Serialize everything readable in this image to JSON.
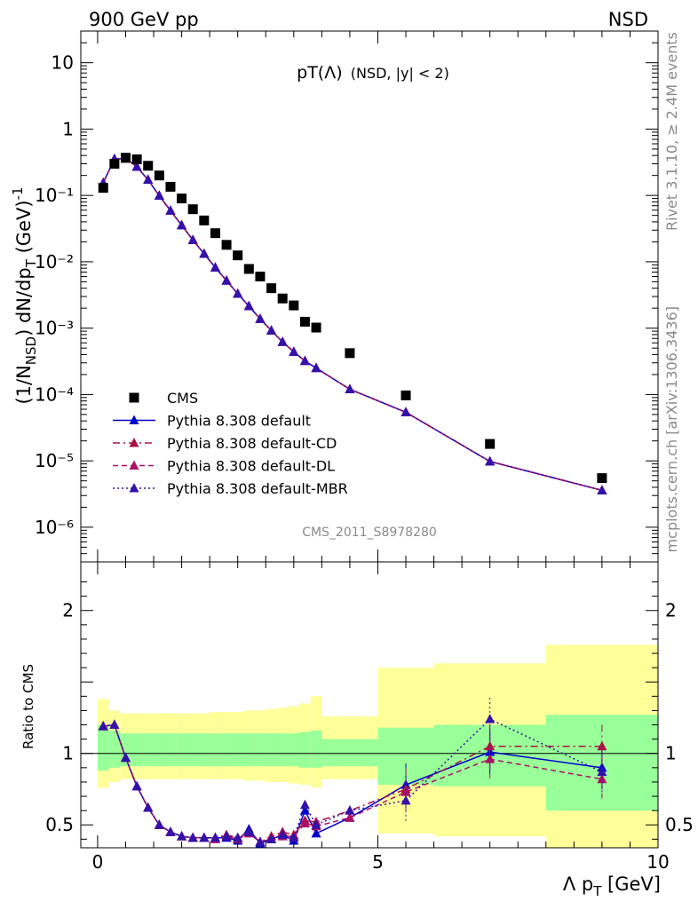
{
  "header": {
    "left": "900 GeV pp",
    "right": "NSD"
  },
  "side_text": {
    "rivet": "Rivet 3.1.10, ≥ 2.4M events",
    "mcplots": "mcplots.cern.ch [arXiv:1306.3436]"
  },
  "watermark": "CMS_2011_S8978280",
  "colors": {
    "cms": "#000000",
    "default": "#0000cc",
    "cd": "#aa1144",
    "dl": "#aa1166",
    "mbr": "#3311aa",
    "band_inner": "#99ff99",
    "band_outer": "#ffff99"
  },
  "chart_data": [
    {
      "type": "scatter",
      "title": "pT(Λ) (NSD, |y| < 2)",
      "title_main": "pT(Λ)",
      "title_suffix": "(NSD, |y| < 2)",
      "ylabel": "(1/N_NSD) dN/dp_T (GeV)^-1",
      "ylabel_parts": {
        "p1": "(1/N",
        "sub1": "NSD",
        "p2": ") dN/dp",
        "sub2": "T",
        "p3": " (GeV)",
        "sup": "-1"
      },
      "xlim": [
        -0.3,
        10
      ],
      "ylim": [
        3e-07,
        30
      ],
      "yscale": "log",
      "yticks": [
        {
          "value": 10,
          "label": "10"
        },
        {
          "value": 1,
          "label": "1"
        },
        {
          "value": 0.1,
          "label": "10⁻¹"
        },
        {
          "value": 0.01,
          "label": "10⁻²"
        },
        {
          "value": 0.001,
          "label": "10⁻³"
        },
        {
          "value": 0.0001,
          "label": "10⁻⁴"
        },
        {
          "value": 1e-05,
          "label": "10⁻⁵"
        },
        {
          "value": 1e-06,
          "label": "10⁻⁶"
        }
      ],
      "legend_placement": "bottom-left",
      "legend": [
        "CMS",
        "Pythia 8.308 default",
        "Pythia 8.308 default-CD",
        "Pythia 8.308 default-DL",
        "Pythia 8.308 default-MBR"
      ],
      "series": [
        {
          "name": "CMS",
          "x": [
            0.1,
            0.3,
            0.5,
            0.7,
            0.9,
            1.1,
            1.3,
            1.5,
            1.7,
            1.9,
            2.1,
            2.3,
            2.5,
            2.7,
            2.9,
            3.1,
            3.3,
            3.5,
            3.7,
            3.9,
            4.5,
            5.5,
            7.0,
            9.0
          ],
          "y": [
            0.13,
            0.3,
            0.37,
            0.35,
            0.28,
            0.2,
            0.135,
            0.09,
            0.062,
            0.042,
            0.027,
            0.018,
            0.0125,
            0.0078,
            0.006,
            0.004,
            0.0028,
            0.0022,
            0.00125,
            0.00102,
            0.00042,
            9.7e-05,
            1.8e-05,
            5.5e-06
          ]
        },
        {
          "name": "Pythia 8.308 default",
          "x": [
            0.1,
            0.3,
            0.5,
            0.7,
            0.9,
            1.1,
            1.3,
            1.5,
            1.7,
            1.9,
            2.1,
            2.3,
            2.5,
            2.7,
            2.9,
            3.1,
            3.3,
            3.5,
            3.7,
            3.9,
            4.5,
            5.5,
            7.0,
            9.0
          ],
          "y": [
            0.155,
            0.355,
            0.36,
            0.27,
            0.172,
            0.099,
            0.059,
            0.0355,
            0.0213,
            0.0132,
            0.0082,
            0.0052,
            0.0033,
            0.00215,
            0.00138,
            0.00092,
            0.00062,
            0.00044,
            0.00032,
            0.00025,
            0.00012,
            5.4e-05,
            9.8e-06,
            3.6e-06
          ]
        },
        {
          "name": "Pythia 8.308 default-CD",
          "x": [
            0.1,
            0.3,
            0.5,
            0.7,
            0.9,
            1.1,
            1.3,
            1.5,
            1.7,
            1.9,
            2.1,
            2.3,
            2.5,
            2.7,
            2.9,
            3.1,
            3.3,
            3.5,
            3.7,
            3.9,
            4.5,
            5.5,
            7.0,
            9.0
          ],
          "y": [
            0.155,
            0.355,
            0.36,
            0.27,
            0.172,
            0.099,
            0.059,
            0.0355,
            0.0213,
            0.0132,
            0.0082,
            0.0052,
            0.0033,
            0.00215,
            0.00138,
            0.00092,
            0.00062,
            0.00044,
            0.00032,
            0.00025,
            0.00012,
            5.4e-05,
            9.8e-06,
            3.6e-06
          ]
        },
        {
          "name": "Pythia 8.308 default-DL",
          "x": [
            0.1,
            0.3,
            0.5,
            0.7,
            0.9,
            1.1,
            1.3,
            1.5,
            1.7,
            1.9,
            2.1,
            2.3,
            2.5,
            2.7,
            2.9,
            3.1,
            3.3,
            3.5,
            3.7,
            3.9,
            4.5,
            5.5,
            7.0,
            9.0
          ],
          "y": [
            0.155,
            0.355,
            0.36,
            0.27,
            0.172,
            0.099,
            0.059,
            0.0355,
            0.0213,
            0.0132,
            0.0082,
            0.0052,
            0.0033,
            0.00215,
            0.00138,
            0.00092,
            0.00062,
            0.00044,
            0.00032,
            0.00025,
            0.00012,
            5.4e-05,
            9.8e-06,
            3.6e-06
          ]
        },
        {
          "name": "Pythia 8.308 default-MBR",
          "x": [
            0.1,
            0.3,
            0.5,
            0.7,
            0.9,
            1.1,
            1.3,
            1.5,
            1.7,
            1.9,
            2.1,
            2.3,
            2.5,
            2.7,
            2.9,
            3.1,
            3.3,
            3.5,
            3.7,
            3.9,
            4.5,
            5.5,
            7.0,
            9.0
          ],
          "y": [
            0.155,
            0.355,
            0.36,
            0.27,
            0.172,
            0.099,
            0.059,
            0.0355,
            0.0213,
            0.0132,
            0.0082,
            0.0052,
            0.0033,
            0.00215,
            0.00138,
            0.00092,
            0.00062,
            0.00044,
            0.00032,
            0.00025,
            0.00012,
            5.4e-05,
            9.8e-06,
            3.6e-06
          ]
        }
      ]
    },
    {
      "type": "line",
      "ylabel": "Ratio to CMS",
      "xlabel": "Λ p_T [GeV]",
      "xlabel_parts": {
        "main": "Λ p",
        "sub": "T",
        "tail": " [GeV]"
      },
      "xlim": [
        -0.3,
        10
      ],
      "ylim": [
        0.34,
        2.34
      ],
      "xticks": [
        {
          "value": 0,
          "label": "0"
        },
        {
          "value": 5,
          "label": "5"
        },
        {
          "value": 10,
          "label": "10"
        }
      ],
      "yticks": [
        {
          "value": 0.5,
          "label": "0.5"
        },
        {
          "value": 1,
          "label": "1"
        },
        {
          "value": 2,
          "label": "2"
        }
      ],
      "bands": {
        "edges": [
          0,
          0.2,
          0.4,
          0.6,
          0.8,
          1.0,
          1.2,
          1.4,
          1.6,
          1.8,
          2.0,
          2.2,
          2.4,
          2.6,
          2.8,
          3.0,
          3.2,
          3.4,
          3.6,
          3.8,
          4.0,
          5.0,
          6.0,
          8.0,
          10.0
        ],
        "inner": [
          [
            0.88,
            1.2
          ],
          [
            0.9,
            1.16
          ],
          [
            0.91,
            1.14
          ],
          [
            0.91,
            1.14
          ],
          [
            0.91,
            1.14
          ],
          [
            0.91,
            1.14
          ],
          [
            0.91,
            1.14
          ],
          [
            0.91,
            1.14
          ],
          [
            0.91,
            1.14
          ],
          [
            0.91,
            1.14
          ],
          [
            0.91,
            1.14
          ],
          [
            0.91,
            1.14
          ],
          [
            0.91,
            1.14
          ],
          [
            0.91,
            1.14
          ],
          [
            0.91,
            1.14
          ],
          [
            0.91,
            1.14
          ],
          [
            0.91,
            1.14
          ],
          [
            0.91,
            1.14
          ],
          [
            0.9,
            1.15
          ],
          [
            0.9,
            1.16
          ],
          [
            0.91,
            1.1
          ],
          [
            0.78,
            1.18
          ],
          [
            0.77,
            1.2
          ],
          [
            0.6,
            1.27
          ],
          [
            0.58,
            1.53
          ]
        ],
        "outer": [
          [
            0.76,
            1.38
          ],
          [
            0.8,
            1.3
          ],
          [
            0.82,
            1.28
          ],
          [
            0.82,
            1.28
          ],
          [
            0.82,
            1.28
          ],
          [
            0.82,
            1.28
          ],
          [
            0.82,
            1.28
          ],
          [
            0.82,
            1.28
          ],
          [
            0.82,
            1.28
          ],
          [
            0.82,
            1.28
          ],
          [
            0.82,
            1.29
          ],
          [
            0.82,
            1.29
          ],
          [
            0.82,
            1.29
          ],
          [
            0.81,
            1.3
          ],
          [
            0.81,
            1.3
          ],
          [
            0.8,
            1.31
          ],
          [
            0.8,
            1.32
          ],
          [
            0.79,
            1.33
          ],
          [
            0.78,
            1.35
          ],
          [
            0.76,
            1.4
          ],
          [
            0.82,
            1.26
          ],
          [
            0.44,
            1.6
          ],
          [
            0.42,
            1.63
          ],
          [
            0.3,
            1.76
          ],
          [
            0.33,
            1.93
          ]
        ]
      },
      "series": [
        {
          "name": "Pythia 8.308 default",
          "x": [
            0.1,
            0.3,
            0.5,
            0.7,
            0.9,
            1.1,
            1.3,
            1.5,
            1.7,
            1.9,
            2.1,
            2.3,
            2.5,
            2.7,
            2.9,
            3.1,
            3.3,
            3.5,
            3.7,
            3.9,
            4.5,
            5.5,
            7.0,
            9.0
          ],
          "y": [
            1.19,
            1.2,
            0.97,
            0.77,
            0.62,
            0.5,
            0.45,
            0.42,
            0.41,
            0.41,
            0.41,
            0.41,
            0.39,
            0.47,
            0.37,
            0.4,
            0.43,
            0.39,
            0.6,
            0.44,
            0.55,
            0.78,
            1.01,
            0.9
          ]
        },
        {
          "name": "Pythia 8.308 default-CD",
          "x": [
            0.1,
            0.3,
            0.5,
            0.7,
            0.9,
            1.1,
            1.3,
            1.5,
            1.7,
            1.9,
            2.1,
            2.3,
            2.5,
            2.7,
            2.9,
            3.1,
            3.3,
            3.5,
            3.7,
            3.9,
            4.5,
            5.5,
            7.0,
            9.0
          ],
          "y": [
            1.19,
            1.2,
            0.97,
            0.77,
            0.62,
            0.5,
            0.45,
            0.42,
            0.41,
            0.41,
            0.41,
            0.43,
            0.41,
            0.45,
            0.38,
            0.42,
            0.45,
            0.43,
            0.53,
            0.52,
            0.6,
            0.75,
            1.05,
            1.05
          ]
        },
        {
          "name": "Pythia 8.308 default-DL",
          "x": [
            0.1,
            0.3,
            0.5,
            0.7,
            0.9,
            1.1,
            1.3,
            1.5,
            1.7,
            1.9,
            2.1,
            2.3,
            2.5,
            2.7,
            2.9,
            3.1,
            3.3,
            3.5,
            3.7,
            3.9,
            4.5,
            5.5,
            7.0,
            9.0
          ],
          "y": [
            1.19,
            1.2,
            0.97,
            0.77,
            0.62,
            0.5,
            0.45,
            0.42,
            0.41,
            0.41,
            0.4,
            0.42,
            0.4,
            0.44,
            0.38,
            0.4,
            0.42,
            0.42,
            0.51,
            0.49,
            0.55,
            0.73,
            0.96,
            0.82
          ]
        },
        {
          "name": "Pythia 8.308 default-MBR",
          "x": [
            0.1,
            0.3,
            0.5,
            0.7,
            0.9,
            1.1,
            1.3,
            1.5,
            1.7,
            1.9,
            2.1,
            2.3,
            2.5,
            2.7,
            2.9,
            3.1,
            3.3,
            3.5,
            3.7,
            3.9,
            4.5,
            5.5,
            7.0,
            9.0
          ],
          "y": [
            1.19,
            1.2,
            0.97,
            0.77,
            0.62,
            0.5,
            0.45,
            0.42,
            0.41,
            0.41,
            0.41,
            0.42,
            0.41,
            0.45,
            0.38,
            0.4,
            0.43,
            0.41,
            0.64,
            0.5,
            0.6,
            0.67,
            1.24,
            0.87
          ]
        }
      ]
    }
  ]
}
